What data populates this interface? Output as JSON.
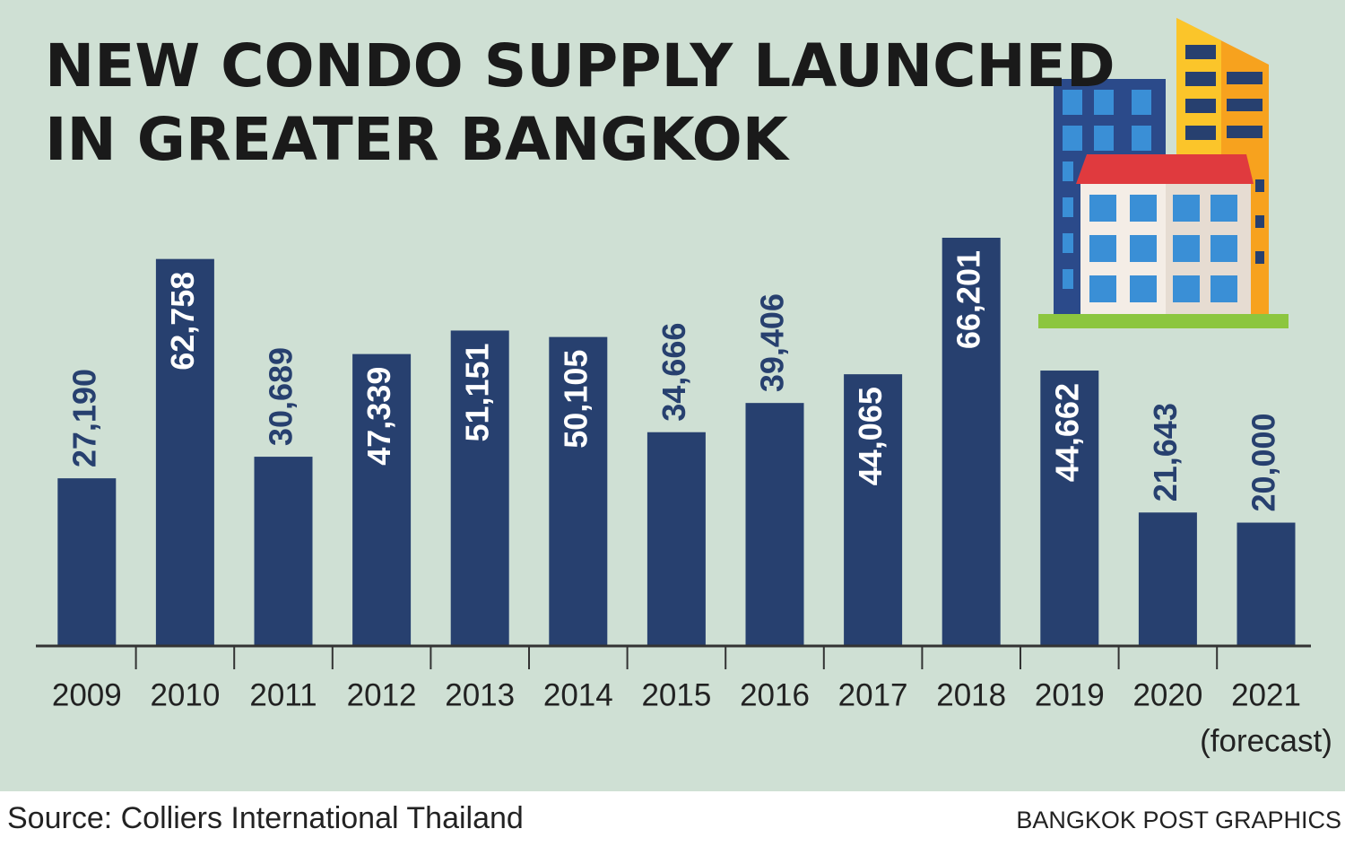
{
  "chart_data": {
    "type": "bar",
    "title": [
      "NEW CONDO SUPPLY LAUNCHED",
      "IN GREATER BANGKOK"
    ],
    "categories": [
      "2009",
      "2010",
      "2011",
      "2012",
      "2013",
      "2014",
      "2015",
      "2016",
      "2017",
      "2018",
      "2019",
      "2020",
      "2021"
    ],
    "category_note": "(forecast)",
    "values": [
      27190,
      62758,
      30689,
      47339,
      51151,
      50105,
      34666,
      39406,
      44065,
      66201,
      44662,
      21643,
      20000
    ],
    "value_labels": [
      "27,190",
      "62,758",
      "30,689",
      "47,339",
      "51,151",
      "50,105",
      "34,666",
      "39,406",
      "44,065",
      "66,201",
      "44,662",
      "21,643",
      "20,000"
    ],
    "color": "#27406f",
    "source": "Source: Colliers International Thailand",
    "credit": "BANGKOK POST GRAPHICS"
  }
}
